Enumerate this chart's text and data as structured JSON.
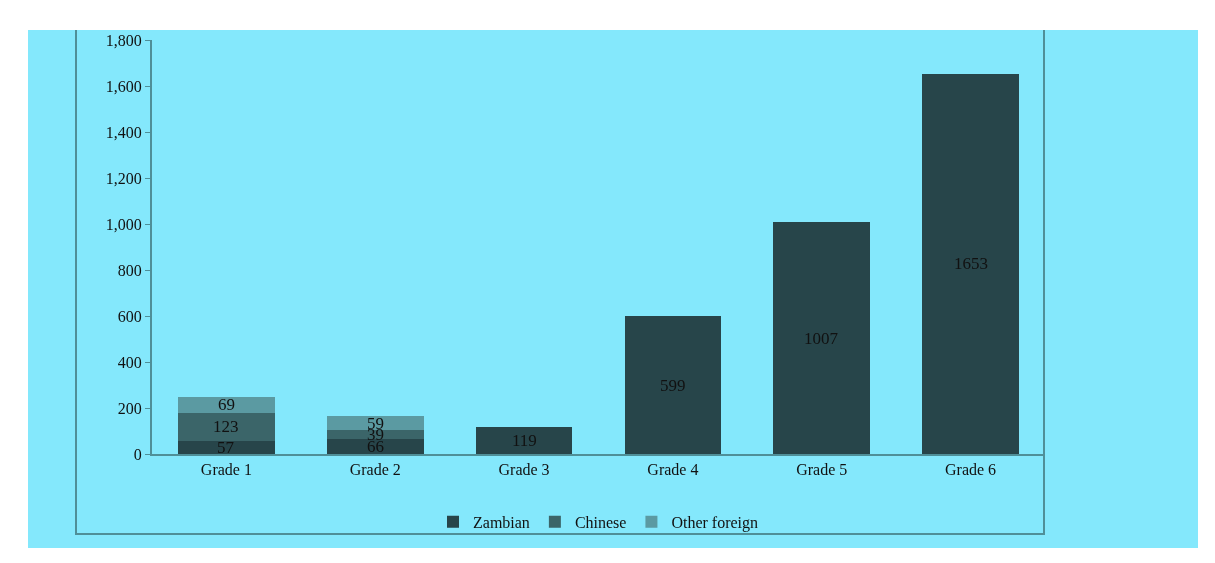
{
  "chart_data": {
    "type": "bar",
    "stacked": true,
    "categories": [
      "Grade 1",
      "Grade 2",
      "Grade 3",
      "Grade 4",
      "Grade 5",
      "Grade 6"
    ],
    "series": [
      {
        "name": "Zambian",
        "color": "#27454a",
        "values": [
          57,
          66,
          119,
          599,
          1007,
          1653
        ]
      },
      {
        "name": "Chinese",
        "color": "#3b6569",
        "values": [
          123,
          39,
          null,
          null,
          null,
          null
        ]
      },
      {
        "name": "Other foreign",
        "color": "#5b9aa2",
        "values": [
          69,
          59,
          null,
          null,
          null,
          null
        ]
      }
    ],
    "ylim": [
      0,
      1800
    ],
    "yticks": [
      0,
      {
        "value": 200,
        "label": "200"
      },
      {
        "value": 400,
        "label": "400"
      },
      {
        "value": 600,
        "label": "600"
      },
      {
        "value": 800,
        "label": "800"
      },
      {
        "value": 1000,
        "label": "1,000"
      },
      {
        "value": 1200,
        "label": "1,200"
      },
      {
        "value": 1400,
        "label": "1,400"
      },
      {
        "value": 1600,
        "label": "1,600"
      },
      {
        "value": 1800,
        "label": "1,800"
      }
    ],
    "grid": false,
    "legend": "bottom",
    "data_labels": true
  }
}
